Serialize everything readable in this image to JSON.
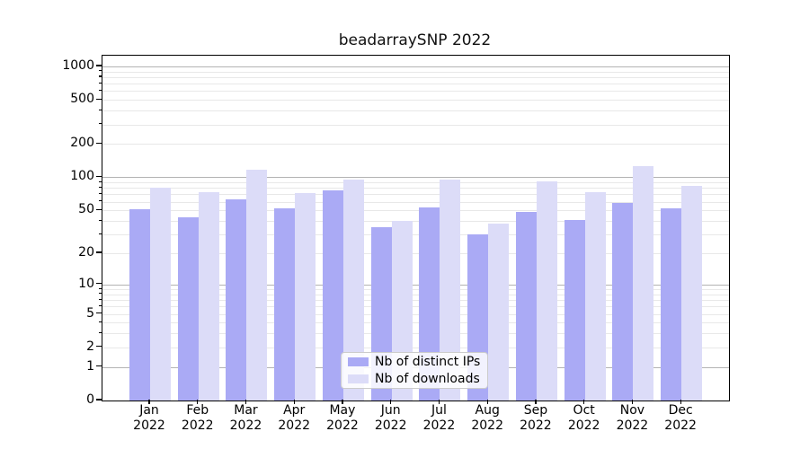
{
  "chart_data": {
    "type": "bar",
    "title": "beadarraySNP 2022",
    "categories": [
      "Jan",
      "Feb",
      "Mar",
      "Apr",
      "May",
      "Jun",
      "Jul",
      "Aug",
      "Sep",
      "Oct",
      "Nov",
      "Dec"
    ],
    "category_year": "2022",
    "series": [
      {
        "name": "Nb of distinct IPs",
        "color": "#aaaaf5",
        "values": [
          51,
          43,
          63,
          52,
          76,
          35,
          53,
          30,
          48,
          41,
          58,
          52
        ]
      },
      {
        "name": "Nb of downloads",
        "color": "#dcdcf8",
        "values": [
          80,
          73,
          118,
          72,
          96,
          40,
          96,
          38,
          91,
          73,
          127,
          83
        ]
      }
    ],
    "xlabel": "",
    "ylabel": "",
    "y_scale": "log1p",
    "y_ticks": [
      0,
      1,
      2,
      5,
      10,
      20,
      50,
      100,
      200,
      500,
      1000
    ],
    "y_major_gridlines": [
      1,
      10,
      100,
      1000
    ],
    "ylim": [
      0,
      1250
    ],
    "grid": "horizontal",
    "legend_position": "lower center",
    "colors": {
      "major_grid": "#b3b3b3",
      "minor_grid": "#e8e8e8",
      "axis": "#000000",
      "background": "#ffffff"
    }
  }
}
